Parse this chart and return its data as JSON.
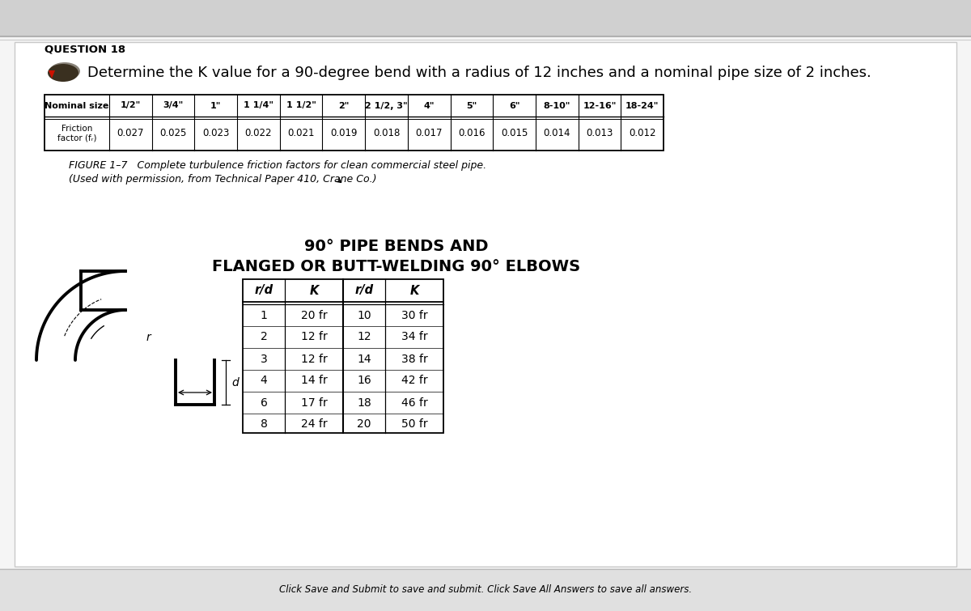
{
  "question_label": "QUESTION 18",
  "question_text": "Determine the K value for a 90-degree bend with a radius of 12 inches and a nominal pipe size of 2 inches.",
  "figure_caption_line1": "FIGURE 1–7   Complete turbulence friction factors for clean commercial steel pipe.",
  "figure_caption_line2": "(Used with permission, from Technical Paper 410, Crane Co.)",
  "friction_table_headers": [
    "Nominal size",
    "1/2\"",
    "3/4\"",
    "1\"",
    "1 1/4\"",
    "1 1/2\"",
    "2\"",
    "2 1/2, 3\"",
    "4\"",
    "5\"",
    "6\"",
    "8-10\"",
    "12-16\"",
    "18-24\""
  ],
  "friction_values": [
    "0.027",
    "0.025",
    "0.023",
    "0.022",
    "0.021",
    "0.019",
    "0.018",
    "0.017",
    "0.016",
    "0.015",
    "0.014",
    "0.013",
    "0.012"
  ],
  "bend_title_line1": "90° PIPE BENDS AND",
  "bend_title_line2": "FLANGED OR BUTT-WELDING 90° ELBOWS",
  "bend_table_data": [
    [
      1,
      "20 fr",
      10,
      "30 fr"
    ],
    [
      2,
      "12 fr",
      12,
      "34 fr"
    ],
    [
      3,
      "12 fr",
      14,
      "38 fr"
    ],
    [
      4,
      "14 fr",
      16,
      "42 fr"
    ],
    [
      6,
      "17 fr",
      18,
      "46 fr"
    ],
    [
      8,
      "24 fr",
      20,
      "50 fr"
    ]
  ],
  "footer_text": "Click Save and Submit to save and submit. Click Save All Answers to save all answers.",
  "bg_color": "#e8e8e8",
  "content_bg": "#f2f2f2",
  "white_color": "#ffffff"
}
